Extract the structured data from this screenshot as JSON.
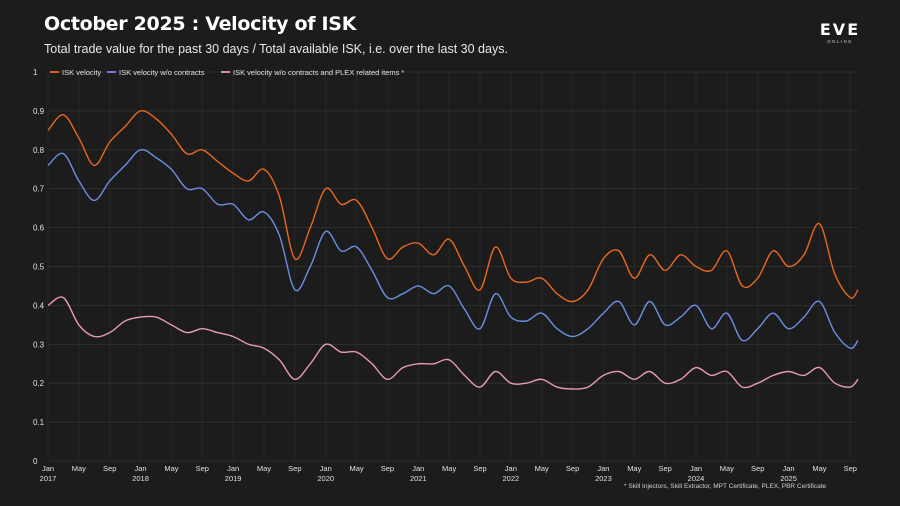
{
  "title": "October 2025 : Velocity of ISK",
  "subtitle": "Total trade value for the past 30 days / Total available ISK, i.e. over the last 30 days.",
  "logo": {
    "word": "EVE",
    "sub": "ONLINE"
  },
  "footnote": "* Skill Injectors, Skill Extractor, MPT Certificate, PLEX, PBR Certificate",
  "chart_data": {
    "type": "line",
    "ylim": [
      0,
      1
    ],
    "yticks": [
      "0",
      "0.1",
      "0.2",
      "0.3",
      "0.4",
      "0.5",
      "0.6",
      "0.7",
      "0.8",
      "0.9",
      "1"
    ],
    "grid": true,
    "legend_position": "top-left",
    "x_range": [
      "2017-01",
      "2025-10"
    ],
    "x_ticks": [
      {
        "month": "Jan",
        "year": "2017"
      },
      {
        "month": "May",
        "year": ""
      },
      {
        "month": "Sep",
        "year": ""
      },
      {
        "month": "Jan",
        "year": "2018"
      },
      {
        "month": "May",
        "year": ""
      },
      {
        "month": "Sep",
        "year": ""
      },
      {
        "month": "Jan",
        "year": "2019"
      },
      {
        "month": "May",
        "year": ""
      },
      {
        "month": "Sep",
        "year": ""
      },
      {
        "month": "Jan",
        "year": "2020"
      },
      {
        "month": "May",
        "year": ""
      },
      {
        "month": "Sep",
        "year": ""
      },
      {
        "month": "Jan",
        "year": "2021"
      },
      {
        "month": "May",
        "year": ""
      },
      {
        "month": "Sep",
        "year": ""
      },
      {
        "month": "Jan",
        "year": "2022"
      },
      {
        "month": "May",
        "year": ""
      },
      {
        "month": "Sep",
        "year": ""
      },
      {
        "month": "Jan",
        "year": "2023"
      },
      {
        "month": "May",
        "year": ""
      },
      {
        "month": "Sep",
        "year": ""
      },
      {
        "month": "Jan",
        "year": "2024"
      },
      {
        "month": "May",
        "year": ""
      },
      {
        "month": "Sep",
        "year": ""
      },
      {
        "month": "Jan",
        "year": "2025"
      },
      {
        "month": "May",
        "year": ""
      },
      {
        "month": "Sep",
        "year": ""
      }
    ],
    "series": [
      {
        "name": "ISK velocity",
        "color": "#e8681e",
        "points": [
          [
            "2017-01",
            0.85
          ],
          [
            "2017-03",
            0.89
          ],
          [
            "2017-05",
            0.83
          ],
          [
            "2017-07",
            0.76
          ],
          [
            "2017-09",
            0.82
          ],
          [
            "2017-11",
            0.86
          ],
          [
            "2018-01",
            0.9
          ],
          [
            "2018-03",
            0.88
          ],
          [
            "2018-05",
            0.84
          ],
          [
            "2018-07",
            0.79
          ],
          [
            "2018-09",
            0.8
          ],
          [
            "2018-11",
            0.77
          ],
          [
            "2019-01",
            0.74
          ],
          [
            "2019-03",
            0.72
          ],
          [
            "2019-05",
            0.75
          ],
          [
            "2019-07",
            0.68
          ],
          [
            "2019-09",
            0.52
          ],
          [
            "2019-11",
            0.6
          ],
          [
            "2020-01",
            0.7
          ],
          [
            "2020-03",
            0.66
          ],
          [
            "2020-05",
            0.67
          ],
          [
            "2020-07",
            0.6
          ],
          [
            "2020-09",
            0.52
          ],
          [
            "2020-11",
            0.55
          ],
          [
            "2021-01",
            0.56
          ],
          [
            "2021-03",
            0.53
          ],
          [
            "2021-05",
            0.57
          ],
          [
            "2021-07",
            0.5
          ],
          [
            "2021-09",
            0.44
          ],
          [
            "2021-11",
            0.55
          ],
          [
            "2022-01",
            0.47
          ],
          [
            "2022-03",
            0.46
          ],
          [
            "2022-05",
            0.47
          ],
          [
            "2022-07",
            0.43
          ],
          [
            "2022-09",
            0.41
          ],
          [
            "2022-11",
            0.44
          ],
          [
            "2023-01",
            0.52
          ],
          [
            "2023-03",
            0.54
          ],
          [
            "2023-05",
            0.47
          ],
          [
            "2023-07",
            0.53
          ],
          [
            "2023-09",
            0.49
          ],
          [
            "2023-11",
            0.53
          ],
          [
            "2024-01",
            0.5
          ],
          [
            "2024-03",
            0.49
          ],
          [
            "2024-05",
            0.54
          ],
          [
            "2024-07",
            0.45
          ],
          [
            "2024-09",
            0.47
          ],
          [
            "2024-11",
            0.54
          ],
          [
            "2025-01",
            0.5
          ],
          [
            "2025-03",
            0.53
          ],
          [
            "2025-05",
            0.61
          ],
          [
            "2025-07",
            0.48
          ],
          [
            "2025-09",
            0.42
          ],
          [
            "2025-10",
            0.44
          ]
        ]
      },
      {
        "name": "ISK velocity w/o contracts",
        "color": "#6a8fe3",
        "points": [
          [
            "2017-01",
            0.76
          ],
          [
            "2017-03",
            0.79
          ],
          [
            "2017-05",
            0.72
          ],
          [
            "2017-07",
            0.67
          ],
          [
            "2017-09",
            0.72
          ],
          [
            "2017-11",
            0.76
          ],
          [
            "2018-01",
            0.8
          ],
          [
            "2018-03",
            0.78
          ],
          [
            "2018-05",
            0.75
          ],
          [
            "2018-07",
            0.7
          ],
          [
            "2018-09",
            0.7
          ],
          [
            "2018-11",
            0.66
          ],
          [
            "2019-01",
            0.66
          ],
          [
            "2019-03",
            0.62
          ],
          [
            "2019-05",
            0.64
          ],
          [
            "2019-07",
            0.58
          ],
          [
            "2019-09",
            0.44
          ],
          [
            "2019-11",
            0.5
          ],
          [
            "2020-01",
            0.59
          ],
          [
            "2020-03",
            0.54
          ],
          [
            "2020-05",
            0.55
          ],
          [
            "2020-07",
            0.49
          ],
          [
            "2020-09",
            0.42
          ],
          [
            "2020-11",
            0.43
          ],
          [
            "2021-01",
            0.45
          ],
          [
            "2021-03",
            0.43
          ],
          [
            "2021-05",
            0.45
          ],
          [
            "2021-07",
            0.39
          ],
          [
            "2021-09",
            0.34
          ],
          [
            "2021-11",
            0.43
          ],
          [
            "2022-01",
            0.37
          ],
          [
            "2022-03",
            0.36
          ],
          [
            "2022-05",
            0.38
          ],
          [
            "2022-07",
            0.34
          ],
          [
            "2022-09",
            0.32
          ],
          [
            "2022-11",
            0.34
          ],
          [
            "2023-01",
            0.38
          ],
          [
            "2023-03",
            0.41
          ],
          [
            "2023-05",
            0.35
          ],
          [
            "2023-07",
            0.41
          ],
          [
            "2023-09",
            0.35
          ],
          [
            "2023-11",
            0.37
          ],
          [
            "2024-01",
            0.4
          ],
          [
            "2024-03",
            0.34
          ],
          [
            "2024-05",
            0.38
          ],
          [
            "2024-07",
            0.31
          ],
          [
            "2024-09",
            0.34
          ],
          [
            "2024-11",
            0.38
          ],
          [
            "2025-01",
            0.34
          ],
          [
            "2025-03",
            0.37
          ],
          [
            "2025-05",
            0.41
          ],
          [
            "2025-07",
            0.33
          ],
          [
            "2025-09",
            0.29
          ],
          [
            "2025-10",
            0.31
          ]
        ]
      },
      {
        "name": "ISK velocity w/o contracts and PLEX related items *",
        "color": "#e89ab8",
        "points": [
          [
            "2017-01",
            0.4
          ],
          [
            "2017-03",
            0.42
          ],
          [
            "2017-05",
            0.35
          ],
          [
            "2017-07",
            0.32
          ],
          [
            "2017-09",
            0.33
          ],
          [
            "2017-11",
            0.36
          ],
          [
            "2018-01",
            0.37
          ],
          [
            "2018-03",
            0.37
          ],
          [
            "2018-05",
            0.35
          ],
          [
            "2018-07",
            0.33
          ],
          [
            "2018-09",
            0.34
          ],
          [
            "2018-11",
            0.33
          ],
          [
            "2019-01",
            0.32
          ],
          [
            "2019-03",
            0.3
          ],
          [
            "2019-05",
            0.29
          ],
          [
            "2019-07",
            0.26
          ],
          [
            "2019-09",
            0.21
          ],
          [
            "2019-11",
            0.25
          ],
          [
            "2020-01",
            0.3
          ],
          [
            "2020-03",
            0.28
          ],
          [
            "2020-05",
            0.28
          ],
          [
            "2020-07",
            0.25
          ],
          [
            "2020-09",
            0.21
          ],
          [
            "2020-11",
            0.24
          ],
          [
            "2021-01",
            0.25
          ],
          [
            "2021-03",
            0.25
          ],
          [
            "2021-05",
            0.26
          ],
          [
            "2021-07",
            0.22
          ],
          [
            "2021-09",
            0.19
          ],
          [
            "2021-11",
            0.23
          ],
          [
            "2022-01",
            0.2
          ],
          [
            "2022-03",
            0.2
          ],
          [
            "2022-05",
            0.21
          ],
          [
            "2022-07",
            0.19
          ],
          [
            "2022-09",
            0.185
          ],
          [
            "2022-11",
            0.19
          ],
          [
            "2023-01",
            0.22
          ],
          [
            "2023-03",
            0.23
          ],
          [
            "2023-05",
            0.21
          ],
          [
            "2023-07",
            0.23
          ],
          [
            "2023-09",
            0.2
          ],
          [
            "2023-11",
            0.21
          ],
          [
            "2024-01",
            0.24
          ],
          [
            "2024-03",
            0.22
          ],
          [
            "2024-05",
            0.23
          ],
          [
            "2024-07",
            0.19
          ],
          [
            "2024-09",
            0.2
          ],
          [
            "2024-11",
            0.22
          ],
          [
            "2025-01",
            0.23
          ],
          [
            "2025-03",
            0.22
          ],
          [
            "2025-05",
            0.24
          ],
          [
            "2025-07",
            0.2
          ],
          [
            "2025-09",
            0.19
          ],
          [
            "2025-10",
            0.21
          ]
        ]
      }
    ]
  }
}
